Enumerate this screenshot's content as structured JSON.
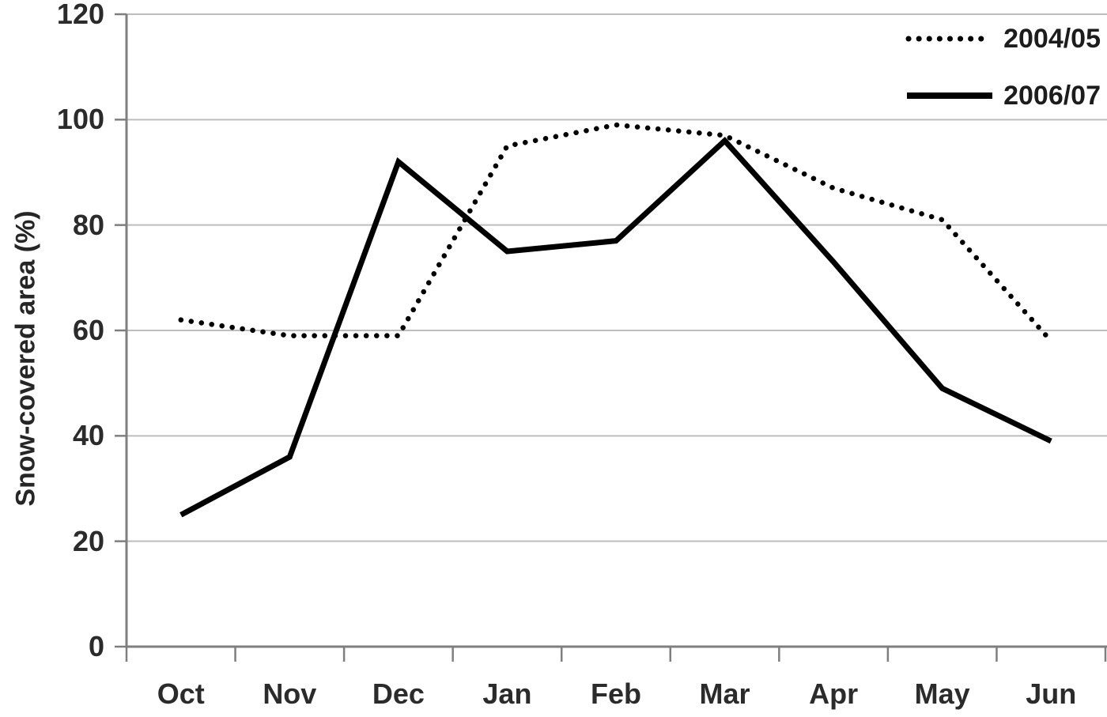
{
  "chart_data": {
    "type": "line",
    "title": "",
    "xlabel": "",
    "ylabel": "Snow-covered area (%)",
    "categories": [
      "Oct",
      "Nov",
      "Dec",
      "Jan",
      "Feb",
      "Mar",
      "Apr",
      "May",
      "Jun"
    ],
    "yticks": [
      0,
      20,
      40,
      60,
      80,
      100,
      120
    ],
    "ylim": [
      0,
      120
    ],
    "grid": "horizontal",
    "legend_position": "top-right",
    "series": [
      {
        "name": "2004/05",
        "style": "dotted",
        "color": "#000000",
        "values": [
          62,
          59,
          59,
          95,
          99,
          97,
          87,
          81,
          58
        ]
      },
      {
        "name": "2006/07",
        "style": "solid",
        "color": "#000000",
        "values": [
          25,
          36,
          92,
          75,
          77,
          96,
          73,
          49,
          39
        ]
      }
    ]
  },
  "colors": {
    "axis": "#7f7f7f",
    "grid": "#bdbdbd",
    "text": "#2b2b2b",
    "series": "#000000"
  }
}
